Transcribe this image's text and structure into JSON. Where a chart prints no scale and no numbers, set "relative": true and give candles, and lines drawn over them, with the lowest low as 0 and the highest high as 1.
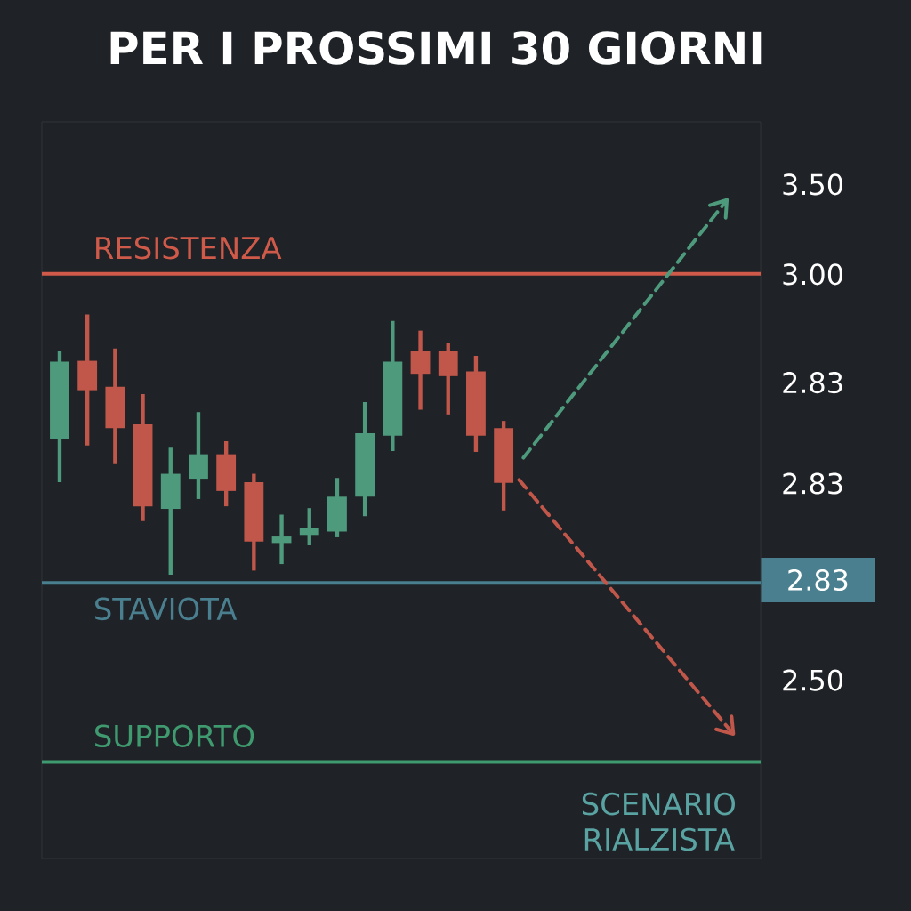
{
  "chart_data": {
    "type": "candlestick",
    "title": "PER I PROSSIMI 30 GIORNI",
    "relative": true,
    "categories": [
      null,
      null,
      null,
      null,
      null,
      null,
      null,
      null,
      null,
      null,
      null,
      null,
      null,
      null,
      null,
      null,
      null
    ],
    "ohlc": [
      [
        0.522,
        0.859,
        0.356,
        0.819
      ],
      [
        0.822,
        1.0,
        0.497,
        0.709
      ],
      [
        0.722,
        0.869,
        0.428,
        0.563
      ],
      [
        0.578,
        0.694,
        0.206,
        0.263
      ],
      [
        0.253,
        0.488,
        0.0,
        0.388
      ],
      [
        0.369,
        0.625,
        0.291,
        0.463
      ],
      [
        0.463,
        0.513,
        0.263,
        0.322
      ],
      [
        0.356,
        0.388,
        0.016,
        0.128
      ],
      [
        0.122,
        0.231,
        0.041,
        0.147
      ],
      [
        0.153,
        0.256,
        0.113,
        0.178
      ],
      [
        0.166,
        0.372,
        0.144,
        0.3
      ],
      [
        0.3,
        0.663,
        0.225,
        0.544
      ],
      [
        0.534,
        0.975,
        0.475,
        0.819
      ],
      [
        0.859,
        0.938,
        0.634,
        0.772
      ],
      [
        0.859,
        0.891,
        0.616,
        0.763
      ],
      [
        0.781,
        0.841,
        0.472,
        0.534
      ],
      [
        0.563,
        0.591,
        0.247,
        0.353
      ]
    ],
    "colors": [
      "#4e9a7c",
      "#c0574a",
      "#c0574a",
      "#c0574a",
      "#4e9a7c",
      "#4e9a7c",
      "#c0574a",
      "#c0574a",
      "#4e9a7c",
      "#4e9a7c",
      "#4e9a7c",
      "#4e9a7c",
      "#4e9a7c",
      "#c0574a",
      "#c0574a",
      "#c0574a",
      "#c0574a"
    ],
    "ref_lines": [
      {
        "axis": "y",
        "value": 1.156,
        "label": "RESISTENZA",
        "color": "#d05a4a"
      },
      {
        "axis": "y",
        "value": -0.031,
        "label": "STAVIOTA",
        "color": "#4a7f8f"
      },
      {
        "axis": "y",
        "value": -0.719,
        "label": "SUPPORTO",
        "color": "#3f9a6f"
      }
    ],
    "annotations": [
      "3.50",
      "3.00",
      "2.83",
      "2.83",
      "2.83",
      "2.50",
      "SCENARIO RIALZISTA"
    ]
  }
}
